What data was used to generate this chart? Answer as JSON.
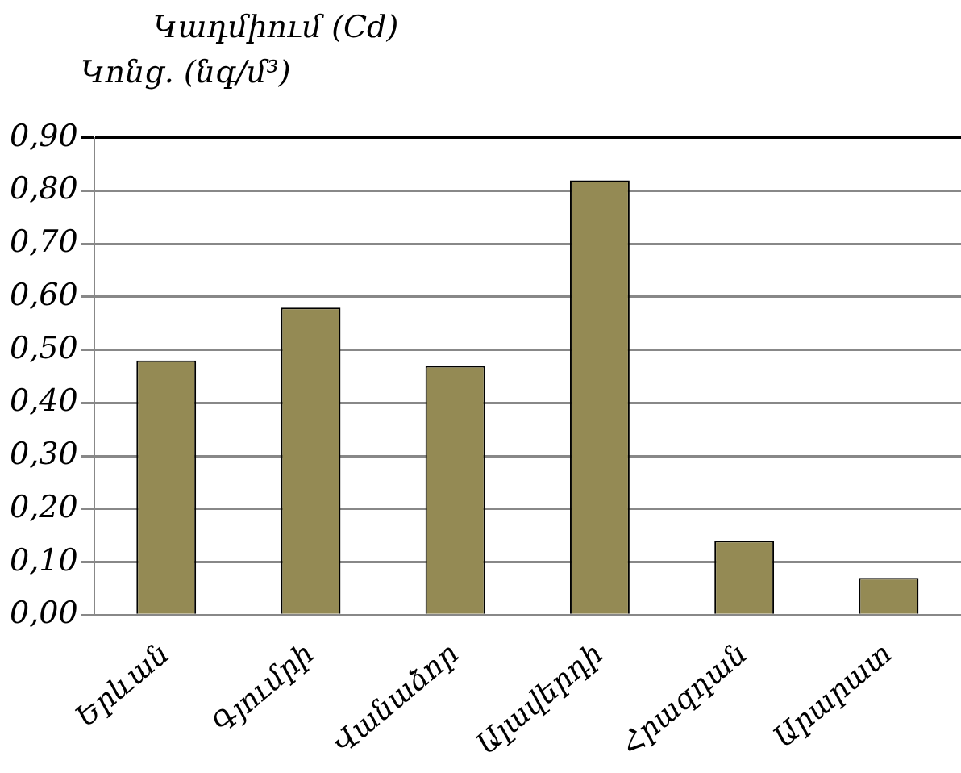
{
  "chart_data": {
    "type": "bar",
    "title": "Կադմիում  (Cd)",
    "ylabel": "Կոնց. (նգ/մ³)",
    "categories": [
      "Երևան",
      "Գյումրի",
      "Վանաձոր",
      "Ալավերդի",
      "Հրազդան",
      "Արարատ"
    ],
    "values": [
      0.48,
      0.58,
      0.47,
      0.82,
      0.14,
      0.07
    ],
    "color": "#948a54",
    "ylim": [
      0,
      0.9
    ],
    "yticks": [
      {
        "value": 0,
        "label": "0,00"
      },
      {
        "value": 0.1,
        "label": "0,10"
      },
      {
        "value": 0.2,
        "label": "0,20"
      },
      {
        "value": 0.3,
        "label": "0,30"
      },
      {
        "value": 0.4,
        "label": "0,40"
      },
      {
        "value": 0.5,
        "label": "0,50"
      },
      {
        "value": 0.6,
        "label": "0,60"
      },
      {
        "value": 0.7,
        "label": "0,70"
      },
      {
        "value": 0.8,
        "label": "0,80"
      },
      {
        "value": 0.9,
        "label": "0,90"
      }
    ],
    "grid": "y",
    "legend": false
  }
}
